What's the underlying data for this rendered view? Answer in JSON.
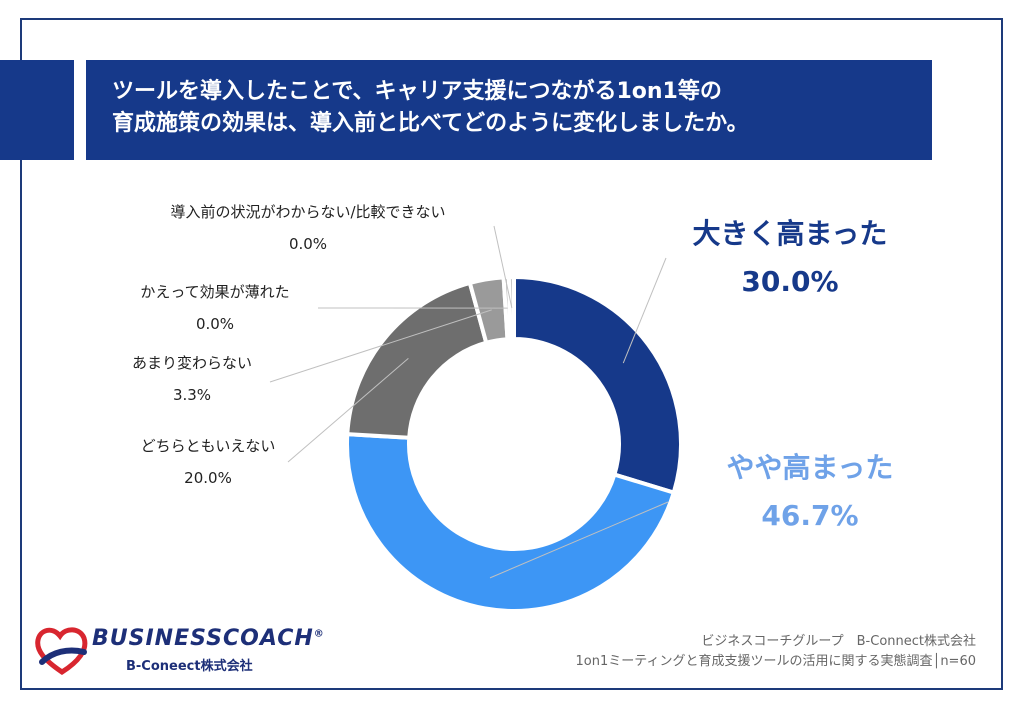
{
  "title": {
    "line1": "ツールを導入したことで、キャリア支援につながる1on1等の",
    "line2": "育成施策の効果は、導入前と比べてどのように変化しましたか。"
  },
  "chart_data": {
    "type": "pie",
    "donut": true,
    "categories": [
      "大きく高まった",
      "やや高まった",
      "どちらともいえない",
      "あまり変わらない",
      "かえって効果が薄れた",
      "導入前の状況がわからない/比較できない"
    ],
    "values": [
      30.0,
      46.7,
      20.0,
      3.3,
      0.0,
      0.0
    ],
    "value_labels": [
      "30.0%",
      "46.7%",
      "20.0%",
      "3.3%",
      "0.0%",
      "0.0%"
    ],
    "colors": [
      "#16398a",
      "#3d96f5",
      "#6e6e6e",
      "#9a9a9a",
      "#b5b5b5",
      "#c8c8c8"
    ]
  },
  "logo": {
    "name": "BUSINESSCOACH",
    "registered": "®",
    "company": "B-Coneect株式会社"
  },
  "source": {
    "line1": "ビジネスコーチグループ　B-Connect株式会社",
    "line2": "1on1ミーティングと育成支援ツールの活用に関する実態調査│n=60"
  }
}
